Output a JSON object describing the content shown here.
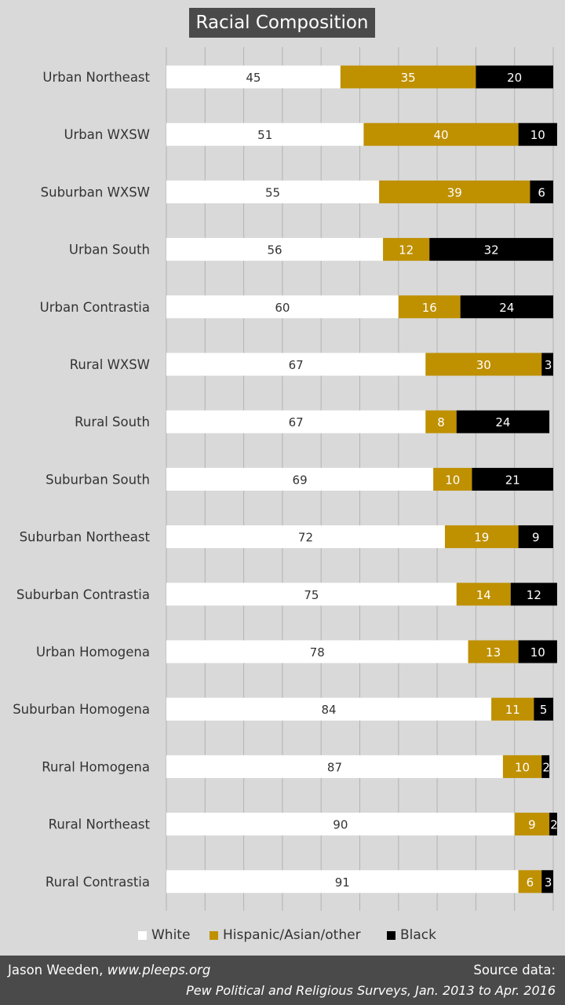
{
  "chart_data": {
    "type": "bar",
    "orientation": "horizontal",
    "stacked": true,
    "title": "Racial Composition",
    "categories": [
      "Urban Northeast",
      "Urban WXSW",
      "Suburban WXSW",
      "Urban South",
      "Urban Contrastia",
      "Rural WXSW",
      "Rural South",
      "Suburban South",
      "Suburban Northeast",
      "Suburban Contrastia",
      "Urban Homogena",
      "Suburban Homogena",
      "Rural Homogena",
      "Rural Northeast",
      "Rural Contrastia"
    ],
    "series": [
      {
        "name": "White",
        "color": "#ffffff",
        "label_color": "#333333",
        "values": [
          45,
          51,
          55,
          56,
          60,
          67,
          67,
          69,
          72,
          75,
          78,
          84,
          87,
          90,
          91
        ]
      },
      {
        "name": "Hispanic/Asian/other",
        "color": "#bf9000",
        "label_color": "#ffffff",
        "values": [
          35,
          40,
          39,
          12,
          16,
          30,
          8,
          10,
          19,
          14,
          13,
          11,
          10,
          9,
          6
        ]
      },
      {
        "name": "Black",
        "color": "#000000",
        "label_color": "#ffffff",
        "values": [
          20,
          10,
          6,
          32,
          24,
          3,
          24,
          21,
          9,
          12,
          10,
          5,
          2,
          2,
          3
        ]
      }
    ],
    "xlim": [
      0,
      100
    ],
    "grid": true,
    "legend_position": "bottom"
  },
  "footer": {
    "author": "Jason Weeden,",
    "site": "www.pleeps.org",
    "source_label": "Source data:",
    "source": "Pew Political and Religious Surveys, Jan. 2013 to Apr. 2016"
  },
  "colors": {
    "background": "#d9d9d9",
    "gridline": "#b3b3b3",
    "banner": "#4a4a4a",
    "white_segment": "#ffffff",
    "hispanic_segment": "#bf9000",
    "black_segment": "#000000"
  }
}
